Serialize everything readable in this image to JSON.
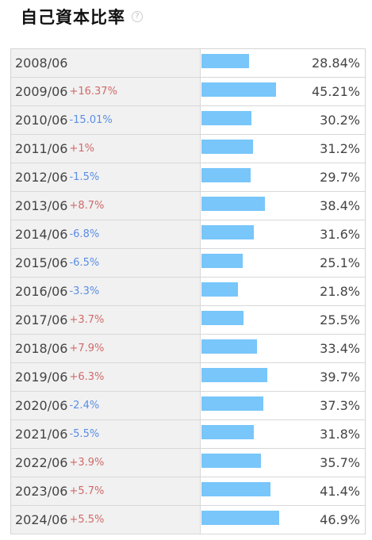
{
  "title": "自己資本比率",
  "help_icon": "question-circle-icon",
  "colors": {
    "bar": "#78c6fa",
    "positive": "#d06a6a",
    "negative": "#5b8ee6"
  },
  "chart_data": {
    "type": "bar",
    "title": "自己資本比率",
    "unit": "%",
    "categories": [
      "2008/06",
      "2009/06",
      "2010/06",
      "2011/06",
      "2012/06",
      "2013/06",
      "2014/06",
      "2015/06",
      "2016/06",
      "2017/06",
      "2018/06",
      "2019/06",
      "2020/06",
      "2021/06",
      "2022/06",
      "2023/06",
      "2024/06"
    ],
    "values": [
      28.84,
      45.21,
      30.2,
      31.2,
      29.7,
      38.4,
      31.6,
      25.1,
      21.8,
      25.5,
      33.4,
      39.7,
      37.3,
      31.8,
      35.7,
      41.4,
      46.9
    ],
    "labels": [
      "28.84%",
      "45.21%",
      "30.2%",
      "31.2%",
      "29.7%",
      "38.4%",
      "31.6%",
      "25.1%",
      "21.8%",
      "25.5%",
      "33.4%",
      "39.7%",
      "37.3%",
      "31.8%",
      "35.7%",
      "41.4%",
      "46.9%"
    ],
    "changes": [
      "",
      "+16.37%",
      "-15.01%",
      "+1%",
      "-1.5%",
      "+8.7%",
      "-6.8%",
      "-6.5%",
      "-3.3%",
      "+3.7%",
      "+7.9%",
      "+6.3%",
      "-2.4%",
      "-5.5%",
      "+3.9%",
      "+5.7%",
      "+5.5%"
    ]
  }
}
